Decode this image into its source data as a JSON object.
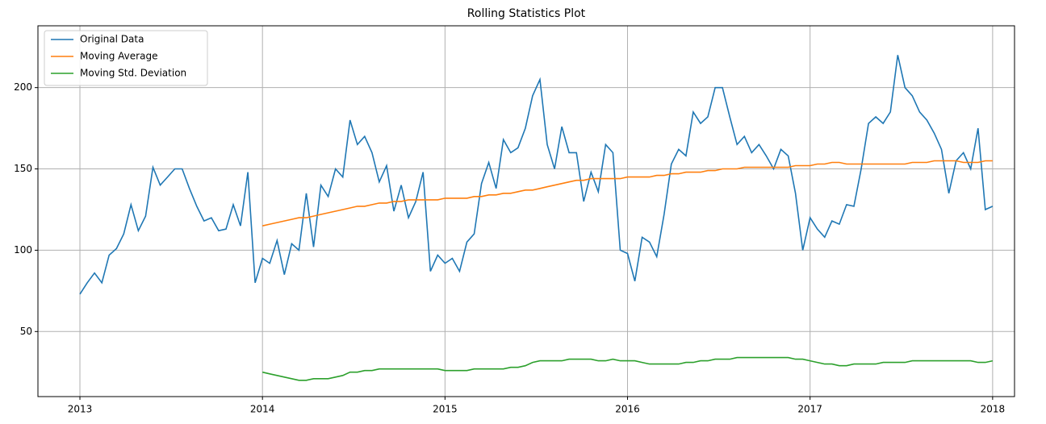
{
  "chart_data": {
    "type": "line",
    "title": "Rolling Statistics Plot",
    "x": [
      2013,
      2013.04,
      2013.08,
      2013.12,
      2013.16,
      2013.2,
      2013.24,
      2013.28,
      2013.32,
      2013.36,
      2013.4,
      2013.44,
      2013.48,
      2013.52,
      2013.56,
      2013.6,
      2013.64,
      2013.68,
      2013.72,
      2013.76,
      2013.8,
      2013.84,
      2013.88,
      2013.92,
      2013.96,
      2014,
      2014.04,
      2014.08,
      2014.12,
      2014.16,
      2014.2,
      2014.24,
      2014.28,
      2014.32,
      2014.36,
      2014.4,
      2014.44,
      2014.48,
      2014.52,
      2014.56,
      2014.6,
      2014.64,
      2014.68,
      2014.72,
      2014.76,
      2014.8,
      2014.84,
      2014.88,
      2014.92,
      2014.96,
      2015,
      2015.04,
      2015.08,
      2015.12,
      2015.16,
      2015.2,
      2015.24,
      2015.28,
      2015.32,
      2015.36,
      2015.4,
      2015.44,
      2015.48,
      2015.52,
      2015.56,
      2015.6,
      2015.64,
      2015.68,
      2015.72,
      2015.76,
      2015.8,
      2015.84,
      2015.88,
      2015.92,
      2015.96,
      2016,
      2016.04,
      2016.08,
      2016.12,
      2016.16,
      2016.2,
      2016.24,
      2016.28,
      2016.32,
      2016.36,
      2016.4,
      2016.44,
      2016.48,
      2016.52,
      2016.56,
      2016.6,
      2016.64,
      2016.68,
      2016.72,
      2016.76,
      2016.8,
      2016.84,
      2016.88,
      2016.92,
      2016.96,
      2017,
      2017.04,
      2017.08,
      2017.12,
      2017.16,
      2017.2,
      2017.24,
      2017.28,
      2017.32,
      2017.36,
      2017.4,
      2017.44,
      2017.48,
      2017.52,
      2017.56,
      2017.6,
      2017.64,
      2017.68,
      2017.72,
      2017.76,
      2017.8,
      2017.84,
      2017.88,
      2017.92,
      2017.96,
      2018
    ],
    "series": [
      {
        "name": "Original Data",
        "color": "#1f77b4",
        "values": [
          73,
          80,
          86,
          80,
          97,
          101,
          110,
          128,
          112,
          121,
          151,
          140,
          145,
          150,
          150,
          138,
          127,
          118,
          120,
          112,
          113,
          128,
          115,
          148,
          80,
          95,
          92,
          106,
          85,
          104,
          100,
          135,
          102,
          140,
          133,
          150,
          145,
          180,
          165,
          170,
          160,
          142,
          152,
          124,
          140,
          120,
          130,
          148,
          87,
          97,
          92,
          95,
          87,
          105,
          110,
          141,
          154,
          138,
          168,
          160,
          163,
          175,
          195,
          205,
          165,
          150,
          176,
          160,
          160,
          130,
          148,
          136,
          165,
          160,
          100,
          98,
          81,
          108,
          105,
          96,
          122,
          153,
          162,
          158,
          185,
          178,
          182,
          200,
          200,
          182,
          165,
          170,
          160,
          165,
          158,
          150,
          162,
          158,
          135,
          100,
          120,
          113,
          108,
          118,
          116,
          128,
          127,
          150,
          178,
          182,
          178,
          185,
          220,
          200,
          195,
          185,
          180,
          172,
          162,
          135,
          155,
          160,
          150,
          175,
          125,
          127
        ]
      },
      {
        "name": "Moving Average",
        "color": "#ff7f0e",
        "values": [
          null,
          null,
          null,
          null,
          null,
          null,
          null,
          null,
          null,
          null,
          null,
          null,
          null,
          null,
          null,
          null,
          null,
          null,
          null,
          null,
          null,
          null,
          null,
          null,
          null,
          115,
          116,
          117,
          118,
          119,
          120,
          120,
          121,
          122,
          123,
          124,
          125,
          126,
          127,
          127,
          128,
          129,
          129,
          130,
          130,
          131,
          131,
          131,
          131,
          131,
          132,
          132,
          132,
          132,
          133,
          133,
          134,
          134,
          135,
          135,
          136,
          137,
          137,
          138,
          139,
          140,
          141,
          142,
          143,
          143,
          144,
          144,
          144,
          144,
          144,
          145,
          145,
          145,
          145,
          146,
          146,
          147,
          147,
          148,
          148,
          148,
          149,
          149,
          150,
          150,
          150,
          151,
          151,
          151,
          151,
          151,
          151,
          151,
          152,
          152,
          152,
          153,
          153,
          154,
          154,
          153,
          153,
          153,
          153,
          153,
          153,
          153,
          153,
          153,
          154,
          154,
          154,
          155,
          155,
          155,
          155,
          154,
          154,
          154,
          155,
          155
        ]
      },
      {
        "name": "Moving Std. Deviation",
        "color": "#2ca02c",
        "values": [
          null,
          null,
          null,
          null,
          null,
          null,
          null,
          null,
          null,
          null,
          null,
          null,
          null,
          null,
          null,
          null,
          null,
          null,
          null,
          null,
          null,
          null,
          null,
          null,
          null,
          25,
          24,
          23,
          22,
          21,
          20,
          20,
          21,
          21,
          21,
          22,
          23,
          25,
          25,
          26,
          26,
          27,
          27,
          27,
          27,
          27,
          27,
          27,
          27,
          27,
          26,
          26,
          26,
          26,
          27,
          27,
          27,
          27,
          27,
          28,
          28,
          29,
          31,
          32,
          32,
          32,
          32,
          33,
          33,
          33,
          33,
          32,
          32,
          33,
          32,
          32,
          32,
          31,
          30,
          30,
          30,
          30,
          30,
          31,
          31,
          32,
          32,
          33,
          33,
          33,
          34,
          34,
          34,
          34,
          34,
          34,
          34,
          34,
          33,
          33,
          32,
          31,
          30,
          30,
          29,
          29,
          30,
          30,
          30,
          30,
          31,
          31,
          31,
          31,
          32,
          32,
          32,
          32,
          32,
          32,
          32,
          32,
          32,
          31,
          31,
          32
        ]
      }
    ],
    "xlim": [
      2012.77,
      2018.12
    ],
    "xticks": [
      2013,
      2014,
      2015,
      2016,
      2017,
      2018
    ],
    "ylim": [
      10,
      238
    ],
    "yticks": [
      50,
      100,
      150,
      200
    ],
    "grid": true,
    "legend": "upper left"
  }
}
